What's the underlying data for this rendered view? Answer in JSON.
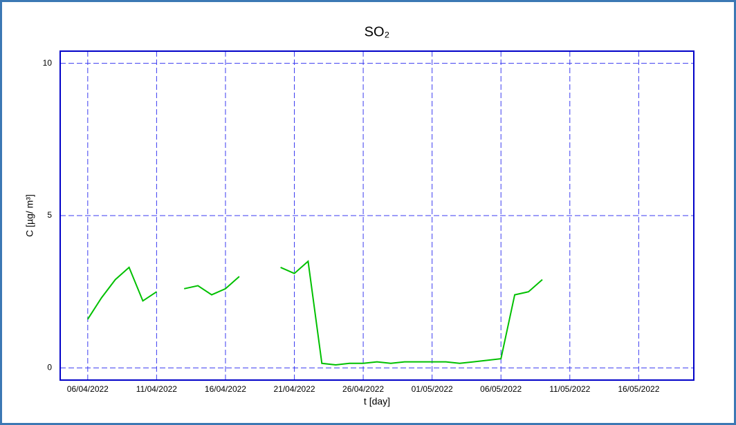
{
  "chart_data": {
    "type": "line",
    "title": "SO₂",
    "x_label": "t [day]",
    "y_label": "C [µg/ m³]",
    "x": [
      "2022-04-06",
      "2022-04-07",
      "2022-04-08",
      "2022-04-09",
      "2022-04-10",
      "2022-04-11",
      "2022-04-12",
      "2022-04-13",
      "2022-04-14",
      "2022-04-15",
      "2022-04-16",
      "2022-04-17",
      "2022-04-18",
      "2022-04-19",
      "2022-04-20",
      "2022-04-21",
      "2022-04-22",
      "2022-04-23",
      "2022-04-24",
      "2022-04-25",
      "2022-04-26",
      "2022-04-27",
      "2022-04-28",
      "2022-04-29",
      "2022-04-30",
      "2022-05-01",
      "2022-05-02",
      "2022-05-03",
      "2022-05-04",
      "2022-05-05",
      "2022-05-06",
      "2022-05-07",
      "2022-05-08",
      "2022-05-09"
    ],
    "series": [
      {
        "name": "SO₂",
        "color": "#00c000",
        "values": [
          1.6,
          2.3,
          2.9,
          3.3,
          2.2,
          2.5,
          null,
          2.6,
          2.7,
          2.4,
          2.6,
          3.0,
          null,
          null,
          3.3,
          3.1,
          3.5,
          0.15,
          0.1,
          0.15,
          0.15,
          0.2,
          0.15,
          0.2,
          0.2,
          0.2,
          0.2,
          0.15,
          0.2,
          0.25,
          0.3,
          2.4,
          2.5,
          2.9
        ]
      }
    ],
    "xlim": [
      "2022-04-04",
      "2022-05-20"
    ],
    "xticks": [
      {
        "value": "2022-04-06",
        "label": "06/04/2022"
      },
      {
        "value": "2022-04-11",
        "label": "11/04/2022"
      },
      {
        "value": "2022-04-16",
        "label": "16/04/2022"
      },
      {
        "value": "2022-04-21",
        "label": "21/04/2022"
      },
      {
        "value": "2022-04-26",
        "label": "26/04/2022"
      },
      {
        "value": "2022-05-01",
        "label": "01/05/2022"
      },
      {
        "value": "2022-05-06",
        "label": "06/05/2022"
      },
      {
        "value": "2022-05-11",
        "label": "11/05/2022"
      },
      {
        "value": "2022-05-16",
        "label": "16/05/2022"
      }
    ],
    "ylim": [
      -0.4,
      10.4
    ],
    "yticks": [
      0,
      5,
      10
    ],
    "grid": true
  }
}
